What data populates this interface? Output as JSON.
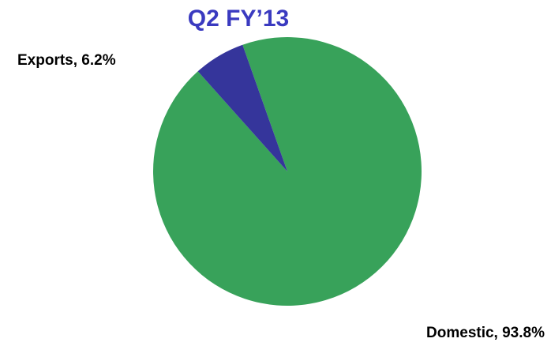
{
  "chart_data": {
    "type": "pie",
    "title": "Q2 FY’13",
    "categories": [
      "Domestic",
      "Exports"
    ],
    "values": [
      93.8,
      6.2
    ],
    "value_labels": [
      "Domestic, 93.8%",
      "Exports, 6.2%"
    ],
    "colors": [
      "#38a25a",
      "#35359b"
    ]
  }
}
